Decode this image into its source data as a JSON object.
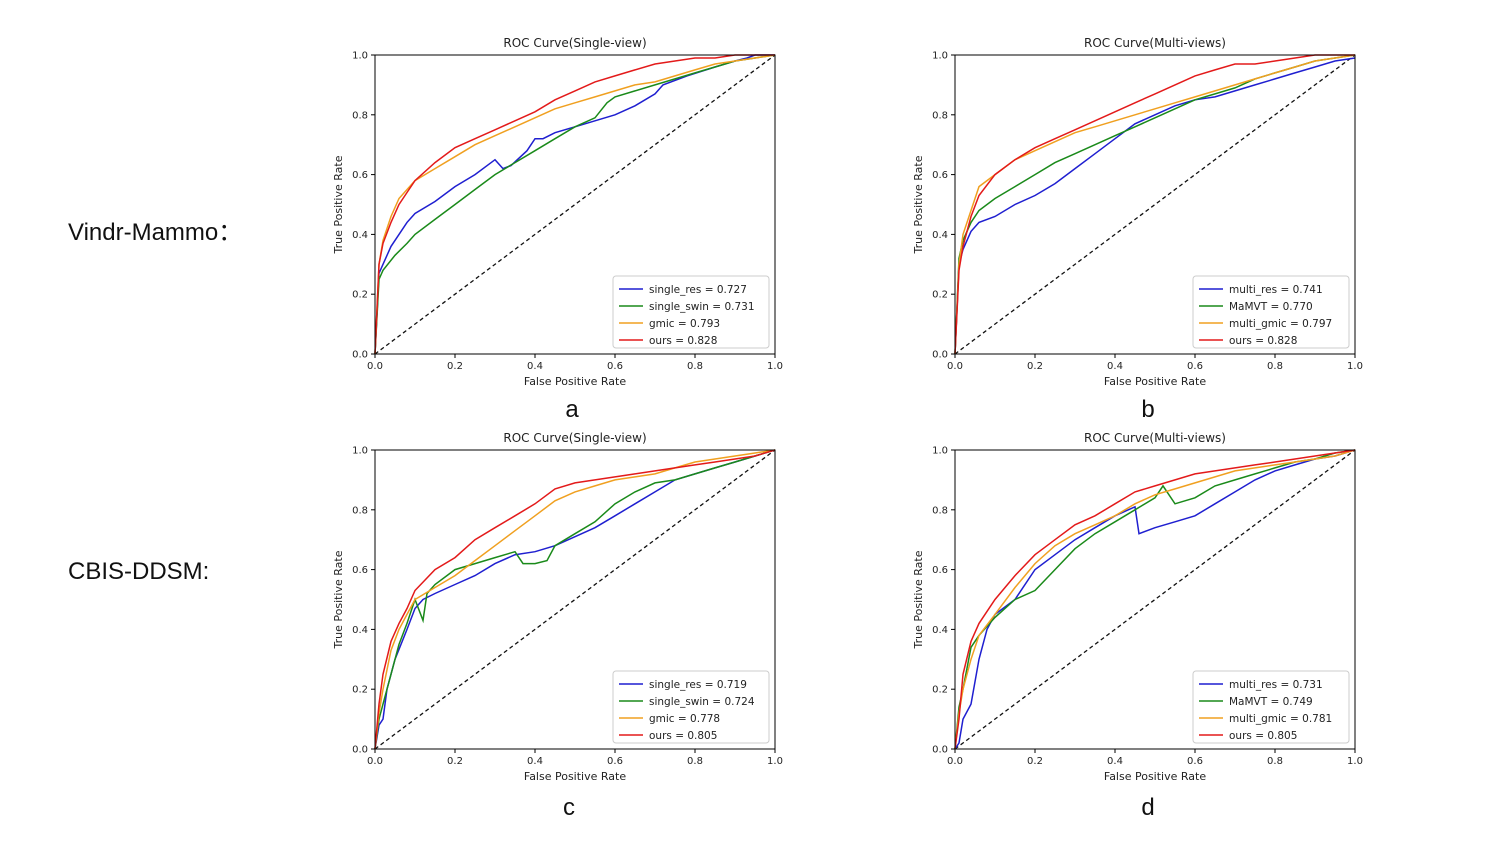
{
  "row_labels": [
    "Vindr-Mammo：",
    "CBIS-DDSM:"
  ],
  "panel_letters": [
    "a",
    "b",
    "c",
    "d"
  ],
  "colors": {
    "blue": "#1f1fd0",
    "green": "#1a8a1a",
    "orange": "#f0a020",
    "red": "#e31a1a",
    "diag": "#111111"
  },
  "chart_data": [
    {
      "type": "line",
      "title": "ROC Curve(Single-view)",
      "xlabel": "False Positive Rate",
      "ylabel": "True Positive Rate",
      "xlim": [
        0,
        1
      ],
      "ylim": [
        0,
        1
      ],
      "ticks": [
        "0.0",
        "0.2",
        "0.4",
        "0.6",
        "0.8",
        "1.0"
      ],
      "legend_position": "lower-right",
      "series": [
        {
          "name": "single_res = 0.727",
          "color": "#1f1fd0",
          "x": [
            0,
            0.01,
            0.02,
            0.04,
            0.06,
            0.08,
            0.1,
            0.15,
            0.2,
            0.25,
            0.3,
            0.32,
            0.34,
            0.38,
            0.4,
            0.42,
            0.45,
            0.5,
            0.55,
            0.6,
            0.65,
            0.7,
            0.72,
            0.78,
            0.85,
            0.9,
            0.93,
            0.95,
            1
          ],
          "y": [
            0,
            0.27,
            0.3,
            0.36,
            0.4,
            0.44,
            0.47,
            0.51,
            0.56,
            0.6,
            0.65,
            0.62,
            0.63,
            0.68,
            0.72,
            0.72,
            0.74,
            0.76,
            0.78,
            0.8,
            0.83,
            0.87,
            0.9,
            0.93,
            0.96,
            0.98,
            0.99,
            1,
            1
          ]
        },
        {
          "name": "single_swin = 0.731",
          "color": "#1a8a1a",
          "x": [
            0,
            0.01,
            0.02,
            0.05,
            0.08,
            0.1,
            0.15,
            0.2,
            0.25,
            0.3,
            0.35,
            0.4,
            0.45,
            0.5,
            0.55,
            0.58,
            0.6,
            0.65,
            0.7,
            0.75,
            0.8,
            0.85,
            0.9,
            0.95,
            1
          ],
          "y": [
            0,
            0.25,
            0.28,
            0.33,
            0.37,
            0.4,
            0.45,
            0.5,
            0.55,
            0.6,
            0.64,
            0.68,
            0.72,
            0.76,
            0.79,
            0.84,
            0.86,
            0.88,
            0.9,
            0.92,
            0.94,
            0.96,
            0.98,
            0.99,
            1
          ]
        },
        {
          "name": "gmic = 0.793",
          "color": "#f0a020",
          "x": [
            0,
            0.01,
            0.02,
            0.04,
            0.06,
            0.1,
            0.15,
            0.2,
            0.25,
            0.3,
            0.35,
            0.4,
            0.45,
            0.5,
            0.55,
            0.6,
            0.65,
            0.7,
            0.75,
            0.8,
            0.85,
            0.9,
            0.95,
            1
          ],
          "y": [
            0,
            0.3,
            0.38,
            0.46,
            0.52,
            0.58,
            0.62,
            0.66,
            0.7,
            0.73,
            0.76,
            0.79,
            0.82,
            0.84,
            0.86,
            0.88,
            0.9,
            0.91,
            0.93,
            0.95,
            0.97,
            0.98,
            0.99,
            1
          ]
        },
        {
          "name": "ours = 0.828",
          "color": "#e31a1a",
          "x": [
            0,
            0.01,
            0.02,
            0.04,
            0.06,
            0.08,
            0.1,
            0.15,
            0.2,
            0.25,
            0.3,
            0.35,
            0.4,
            0.45,
            0.5,
            0.55,
            0.6,
            0.65,
            0.7,
            0.75,
            0.8,
            0.85,
            0.9,
            0.95,
            1
          ],
          "y": [
            0,
            0.3,
            0.37,
            0.44,
            0.5,
            0.54,
            0.58,
            0.64,
            0.69,
            0.72,
            0.75,
            0.78,
            0.81,
            0.85,
            0.88,
            0.91,
            0.93,
            0.95,
            0.97,
            0.98,
            0.99,
            0.99,
            1,
            1,
            1
          ]
        }
      ]
    },
    {
      "type": "line",
      "title": "ROC Curve(Multi-views)",
      "xlabel": "False Positive Rate",
      "ylabel": "True Positive Rate",
      "xlim": [
        0,
        1
      ],
      "ylim": [
        0,
        1
      ],
      "ticks": [
        "0.0",
        "0.2",
        "0.4",
        "0.6",
        "0.8",
        "1.0"
      ],
      "legend_position": "lower-right",
      "series": [
        {
          "name": "multi_res = 0.741",
          "color": "#1f1fd0",
          "x": [
            0,
            0.01,
            0.02,
            0.04,
            0.06,
            0.1,
            0.15,
            0.2,
            0.25,
            0.3,
            0.35,
            0.4,
            0.45,
            0.5,
            0.55,
            0.6,
            0.65,
            0.7,
            0.75,
            0.8,
            0.85,
            0.9,
            0.95,
            1
          ],
          "y": [
            0,
            0.3,
            0.35,
            0.41,
            0.44,
            0.46,
            0.5,
            0.53,
            0.57,
            0.62,
            0.67,
            0.72,
            0.77,
            0.8,
            0.83,
            0.85,
            0.86,
            0.88,
            0.9,
            0.92,
            0.94,
            0.96,
            0.98,
            0.99
          ]
        },
        {
          "name": "MaMVT = 0.770",
          "color": "#1a8a1a",
          "x": [
            0,
            0.01,
            0.02,
            0.04,
            0.06,
            0.1,
            0.15,
            0.2,
            0.25,
            0.3,
            0.35,
            0.4,
            0.45,
            0.5,
            0.55,
            0.6,
            0.65,
            0.7,
            0.75,
            0.8,
            0.85,
            0.9,
            0.95,
            1
          ],
          "y": [
            0,
            0.32,
            0.38,
            0.44,
            0.48,
            0.52,
            0.56,
            0.6,
            0.64,
            0.67,
            0.7,
            0.73,
            0.76,
            0.79,
            0.82,
            0.85,
            0.87,
            0.89,
            0.92,
            0.94,
            0.96,
            0.98,
            0.99,
            1
          ]
        },
        {
          "name": "multi_gmic = 0.797",
          "color": "#f0a020",
          "x": [
            0,
            0.01,
            0.02,
            0.04,
            0.06,
            0.1,
            0.15,
            0.2,
            0.25,
            0.3,
            0.35,
            0.4,
            0.45,
            0.5,
            0.55,
            0.6,
            0.65,
            0.7,
            0.75,
            0.8,
            0.85,
            0.9,
            0.95,
            1
          ],
          "y": [
            0,
            0.3,
            0.4,
            0.48,
            0.56,
            0.6,
            0.65,
            0.68,
            0.71,
            0.74,
            0.76,
            0.78,
            0.8,
            0.82,
            0.84,
            0.86,
            0.88,
            0.9,
            0.92,
            0.94,
            0.96,
            0.98,
            0.99,
            1
          ]
        },
        {
          "name": "ours = 0.828",
          "color": "#e31a1a",
          "x": [
            0,
            0.01,
            0.02,
            0.04,
            0.06,
            0.1,
            0.15,
            0.2,
            0.25,
            0.3,
            0.35,
            0.4,
            0.45,
            0.5,
            0.55,
            0.6,
            0.65,
            0.7,
            0.75,
            0.8,
            0.85,
            0.9,
            0.95,
            1
          ],
          "y": [
            0,
            0.28,
            0.36,
            0.46,
            0.53,
            0.6,
            0.65,
            0.69,
            0.72,
            0.75,
            0.78,
            0.81,
            0.84,
            0.87,
            0.9,
            0.93,
            0.95,
            0.97,
            0.97,
            0.98,
            0.99,
            1,
            1,
            1
          ]
        }
      ]
    },
    {
      "type": "line",
      "title": "ROC Curve(Single-view)",
      "xlabel": "False Positive Rate",
      "ylabel": "True Positive Rate",
      "xlim": [
        0,
        1
      ],
      "ylim": [
        0,
        1
      ],
      "ticks": [
        "0.0",
        "0.2",
        "0.4",
        "0.6",
        "0.8",
        "1.0"
      ],
      "legend_position": "lower-right",
      "series": [
        {
          "name": "single_res = 0.719",
          "color": "#1f1fd0",
          "x": [
            0,
            0.01,
            0.02,
            0.03,
            0.05,
            0.08,
            0.1,
            0.12,
            0.15,
            0.2,
            0.25,
            0.3,
            0.35,
            0.4,
            0.45,
            0.5,
            0.55,
            0.6,
            0.65,
            0.7,
            0.75,
            0.8,
            0.85,
            0.9,
            0.95,
            1
          ],
          "y": [
            0,
            0.08,
            0.1,
            0.2,
            0.3,
            0.4,
            0.47,
            0.5,
            0.52,
            0.55,
            0.58,
            0.62,
            0.65,
            0.66,
            0.68,
            0.71,
            0.74,
            0.78,
            0.82,
            0.86,
            0.9,
            0.92,
            0.94,
            0.96,
            0.98,
            1
          ]
        },
        {
          "name": "single_swin = 0.724",
          "color": "#1a8a1a",
          "x": [
            0,
            0.01,
            0.02,
            0.04,
            0.06,
            0.08,
            0.1,
            0.12,
            0.13,
            0.15,
            0.2,
            0.25,
            0.3,
            0.35,
            0.37,
            0.4,
            0.43,
            0.45,
            0.5,
            0.55,
            0.6,
            0.65,
            0.7,
            0.75,
            0.8,
            0.85,
            0.9,
            0.95,
            1
          ],
          "y": [
            0,
            0.1,
            0.15,
            0.25,
            0.35,
            0.42,
            0.5,
            0.43,
            0.52,
            0.55,
            0.6,
            0.62,
            0.64,
            0.66,
            0.62,
            0.62,
            0.63,
            0.68,
            0.72,
            0.76,
            0.82,
            0.86,
            0.89,
            0.9,
            0.92,
            0.94,
            0.96,
            0.98,
            1
          ]
        },
        {
          "name": "gmic = 0.778",
          "color": "#f0a020",
          "x": [
            0,
            0.01,
            0.02,
            0.04,
            0.06,
            0.08,
            0.1,
            0.15,
            0.2,
            0.25,
            0.3,
            0.35,
            0.4,
            0.45,
            0.5,
            0.55,
            0.6,
            0.65,
            0.7,
            0.75,
            0.8,
            0.85,
            0.9,
            0.95,
            1
          ],
          "y": [
            0,
            0.12,
            0.2,
            0.33,
            0.4,
            0.45,
            0.5,
            0.54,
            0.58,
            0.63,
            0.68,
            0.73,
            0.78,
            0.83,
            0.86,
            0.88,
            0.9,
            0.91,
            0.92,
            0.94,
            0.96,
            0.97,
            0.98,
            0.99,
            1
          ]
        },
        {
          "name": "ours = 0.805",
          "color": "#e31a1a",
          "x": [
            0,
            0.01,
            0.02,
            0.04,
            0.06,
            0.08,
            0.1,
            0.15,
            0.2,
            0.25,
            0.3,
            0.35,
            0.4,
            0.45,
            0.5,
            0.55,
            0.6,
            0.65,
            0.7,
            0.75,
            0.8,
            0.85,
            0.9,
            0.95,
            1
          ],
          "y": [
            0,
            0.15,
            0.25,
            0.36,
            0.42,
            0.47,
            0.53,
            0.6,
            0.64,
            0.7,
            0.74,
            0.78,
            0.82,
            0.87,
            0.89,
            0.9,
            0.91,
            0.92,
            0.93,
            0.94,
            0.95,
            0.96,
            0.97,
            0.98,
            1
          ]
        }
      ]
    },
    {
      "type": "line",
      "title": "ROC Curve(Multi-views)",
      "xlabel": "False Positive Rate",
      "ylabel": "True Positive Rate",
      "xlim": [
        0,
        1
      ],
      "ylim": [
        0,
        1
      ],
      "ticks": [
        "0.0",
        "0.2",
        "0.4",
        "0.6",
        "0.8",
        "1.0"
      ],
      "legend_position": "lower-right",
      "series": [
        {
          "name": "multi_res = 0.731",
          "color": "#1f1fd0",
          "x": [
            0,
            0.01,
            0.02,
            0.04,
            0.06,
            0.08,
            0.1,
            0.15,
            0.2,
            0.25,
            0.3,
            0.35,
            0.4,
            0.45,
            0.46,
            0.5,
            0.55,
            0.6,
            0.65,
            0.7,
            0.75,
            0.8,
            0.85,
            0.9,
            0.95,
            1
          ],
          "y": [
            0,
            0.02,
            0.1,
            0.15,
            0.3,
            0.4,
            0.45,
            0.5,
            0.6,
            0.65,
            0.7,
            0.74,
            0.78,
            0.81,
            0.72,
            0.74,
            0.76,
            0.78,
            0.82,
            0.86,
            0.9,
            0.93,
            0.95,
            0.97,
            0.98,
            1
          ]
        },
        {
          "name": "MaMVT = 0.749",
          "color": "#1a8a1a",
          "x": [
            0,
            0.01,
            0.02,
            0.04,
            0.06,
            0.1,
            0.15,
            0.2,
            0.25,
            0.3,
            0.35,
            0.4,
            0.45,
            0.5,
            0.52,
            0.55,
            0.6,
            0.65,
            0.7,
            0.75,
            0.8,
            0.85,
            0.9,
            0.95,
            1
          ],
          "y": [
            0,
            0.14,
            0.2,
            0.34,
            0.38,
            0.44,
            0.5,
            0.53,
            0.6,
            0.67,
            0.72,
            0.76,
            0.8,
            0.84,
            0.88,
            0.82,
            0.84,
            0.88,
            0.9,
            0.92,
            0.94,
            0.96,
            0.97,
            0.99,
            1
          ]
        },
        {
          "name": "multi_gmic = 0.781",
          "color": "#f0a020",
          "x": [
            0,
            0.01,
            0.02,
            0.04,
            0.06,
            0.1,
            0.15,
            0.2,
            0.25,
            0.3,
            0.35,
            0.4,
            0.45,
            0.5,
            0.55,
            0.6,
            0.65,
            0.7,
            0.75,
            0.8,
            0.85,
            0.9,
            0.95,
            1
          ],
          "y": [
            0,
            0.12,
            0.2,
            0.3,
            0.38,
            0.45,
            0.54,
            0.62,
            0.68,
            0.72,
            0.75,
            0.78,
            0.82,
            0.85,
            0.87,
            0.89,
            0.91,
            0.93,
            0.94,
            0.95,
            0.96,
            0.97,
            0.98,
            1
          ]
        },
        {
          "name": "ours = 0.805",
          "color": "#e31a1a",
          "x": [
            0,
            0.01,
            0.02,
            0.04,
            0.06,
            0.1,
            0.15,
            0.2,
            0.25,
            0.3,
            0.35,
            0.4,
            0.45,
            0.5,
            0.55,
            0.6,
            0.65,
            0.7,
            0.75,
            0.8,
            0.85,
            0.9,
            0.95,
            1
          ],
          "y": [
            0,
            0.1,
            0.25,
            0.36,
            0.42,
            0.5,
            0.58,
            0.65,
            0.7,
            0.75,
            0.78,
            0.82,
            0.86,
            0.88,
            0.9,
            0.92,
            0.93,
            0.94,
            0.95,
            0.96,
            0.97,
            0.98,
            0.99,
            1
          ]
        }
      ]
    }
  ]
}
